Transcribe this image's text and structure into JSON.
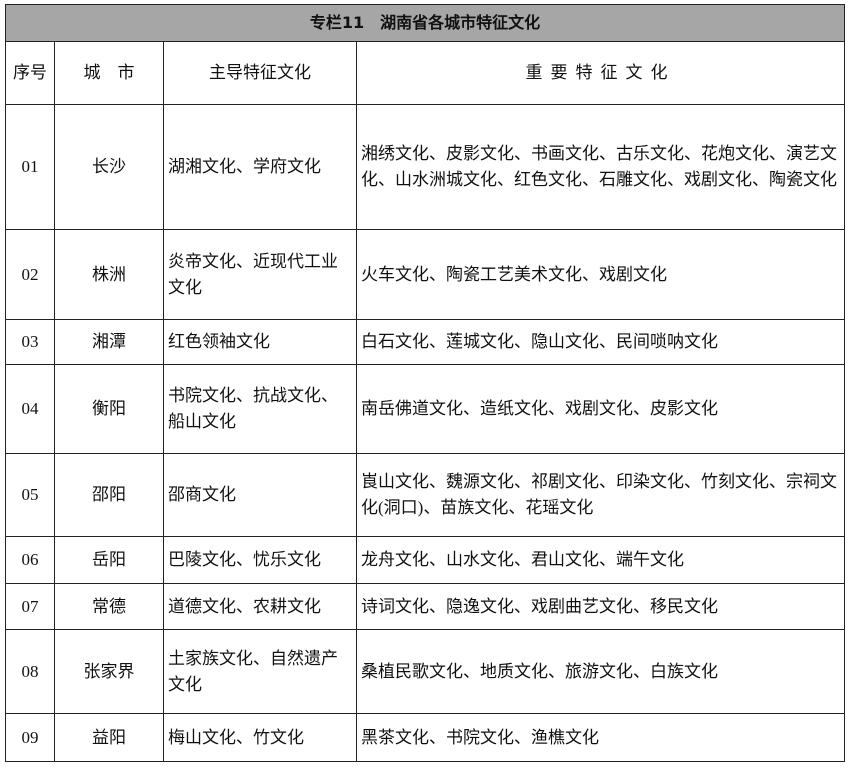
{
  "title": "专栏11　湖南省各城市特征文化",
  "headers": [
    "序号",
    "城　市",
    "主导特征文化",
    "重要特征文化"
  ],
  "rows": [
    [
      "01",
      "长沙",
      "湖湘文化、学府文化",
      "湘绣文化、皮影文化、书画文化、古乐文化、花炮文化、演艺文化、山水洲城文化、红色文化、石雕文化、戏剧文化、陶瓷文化"
    ],
    [
      "02",
      "株洲",
      "炎帝文化、近现代工业文化",
      "火车文化、陶瓷工艺美术文化、戏剧文化"
    ],
    [
      "03",
      "湘潭",
      "红色领袖文化",
      "白石文化、莲城文化、隐山文化、民间唢呐文化"
    ],
    [
      "04",
      "衡阳",
      "书院文化、抗战文化、船山文化",
      "南岳佛道文化、造纸文化、戏剧文化、皮影文化"
    ],
    [
      "05",
      "邵阳",
      "邵商文化",
      "崀山文化、魏源文化、祁剧文化、印染文化、竹刻文化、宗祠文化(洞口)、苗族文化、花瑶文化"
    ],
    [
      "06",
      "岳阳",
      "巴陵文化、忧乐文化",
      "龙舟文化、山水文化、君山文化、端午文化"
    ],
    [
      "07",
      "常德",
      "道德文化、农耕文化",
      "诗词文化、隐逸文化、戏剧曲艺文化、移民文化"
    ],
    [
      "08",
      "张家界",
      "土家族文化、自然遗产文化",
      "桑植民歌文化、地质文化、旅游文化、白族文化"
    ],
    [
      "09",
      "益阳",
      "梅山文化、竹文化",
      "黑茶文化、书院文化、渔樵文化"
    ]
  ]
}
